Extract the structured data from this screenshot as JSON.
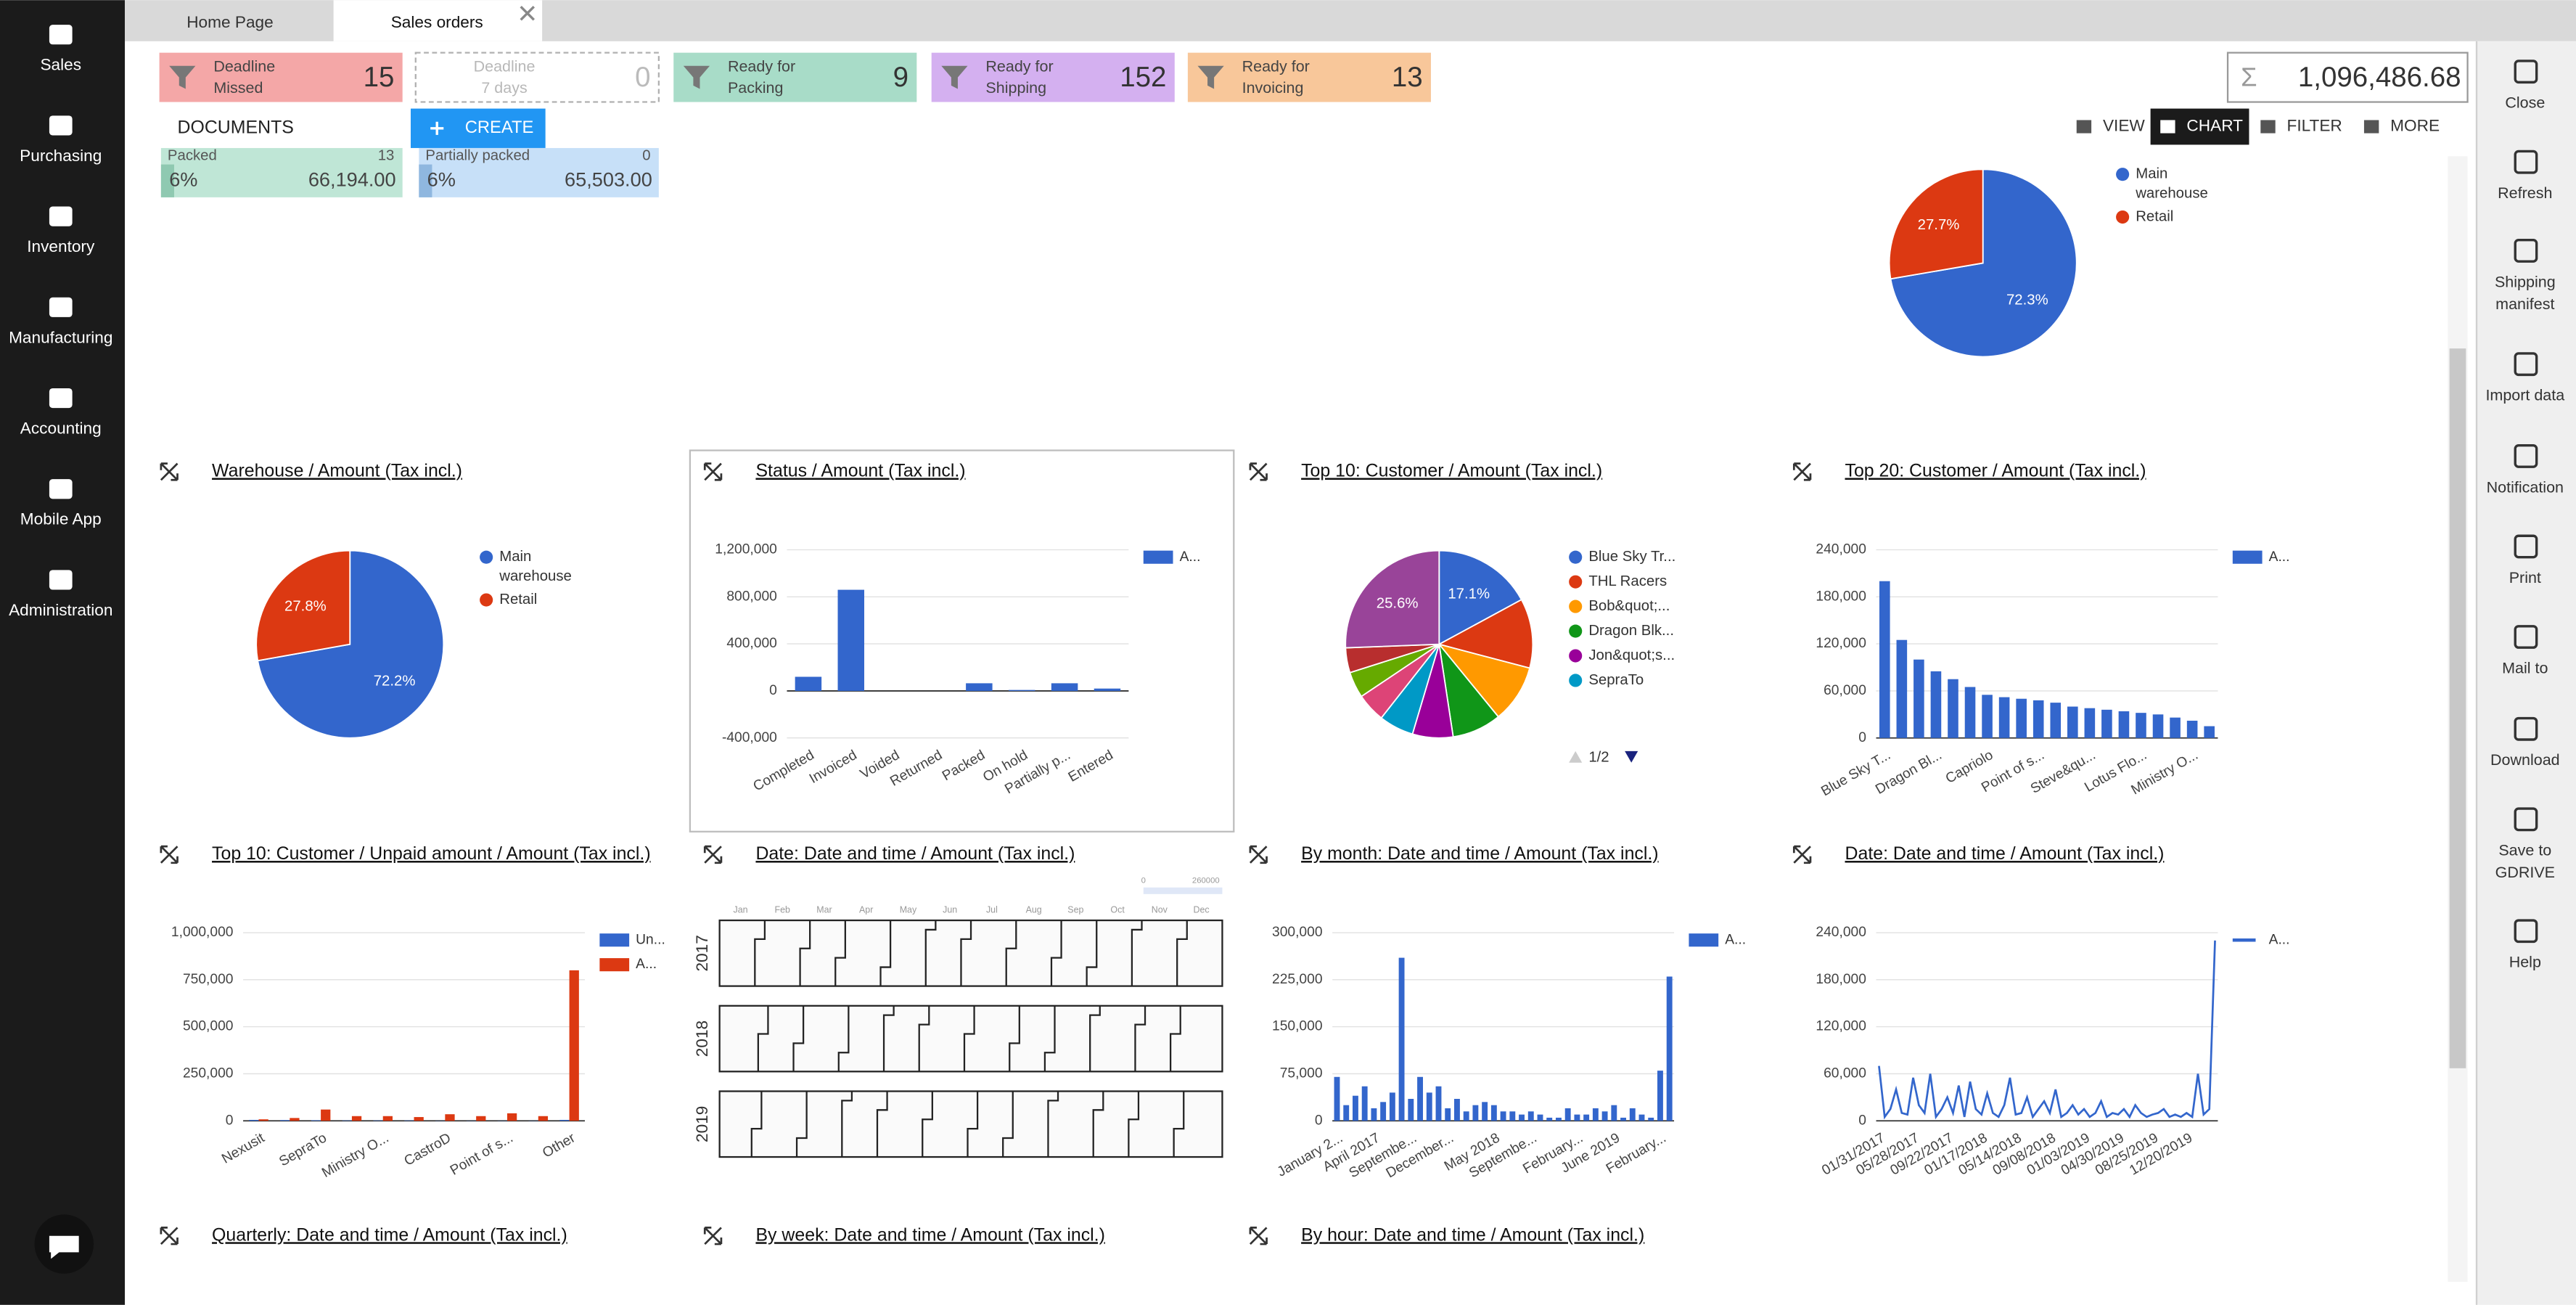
{
  "sidebar": [
    "Sales",
    "Purchasing",
    "Inventory",
    "Manufacturing",
    "Accounting",
    "Mobile App",
    "Administration"
  ],
  "tabs": [
    "Home Page",
    "Sales orders"
  ],
  "filters": [
    {
      "lines": [
        "Deadline",
        "Missed"
      ],
      "count": 15,
      "color": "#f4a7a7"
    },
    {
      "lines": [
        "Deadline",
        "7 days"
      ],
      "count": 0,
      "color": "#ffffff"
    },
    {
      "lines": [
        "Ready for",
        "Packing"
      ],
      "count": 9,
      "color": "#a8dcc8"
    },
    {
      "lines": [
        "Ready for",
        "Shipping"
      ],
      "count": 152,
      "color": "#d4b0f0"
    },
    {
      "lines": [
        "Ready for",
        "Invoicing"
      ],
      "count": 13,
      "color": "#f8c79a"
    }
  ],
  "total": {
    "symbol": "Σ",
    "value": "1,096,486.68"
  },
  "documents": "DOCUMENTS",
  "create": "CREATE",
  "toolbar": [
    "VIEW",
    "CHART",
    "FILTER",
    "MORE"
  ],
  "status_cards": [
    {
      "label": "Packed",
      "count": 13,
      "percent": "6%",
      "amount": "66,194.00",
      "color": "#bfe6d6"
    },
    {
      "label": "Partially packed",
      "count": 0,
      "percent": "6%",
      "amount": "65,503.00",
      "color": "#c7e0f8"
    }
  ],
  "actions": [
    [
      "Close"
    ],
    [
      "Refresh"
    ],
    [
      "Shipping",
      "manifest"
    ],
    [
      "Import data"
    ],
    [
      "Notification"
    ],
    [
      "Print"
    ],
    [
      "Mail to"
    ],
    [
      "Download"
    ],
    [
      "Save to",
      "GDRIVE"
    ],
    [
      "Help"
    ]
  ],
  "top_chart": {
    "type": "pie",
    "categories": [
      [
        "Main",
        "warehouse"
      ],
      [
        "Retail"
      ]
    ],
    "values": [
      72.3,
      27.7
    ],
    "value_labels": [
      "72.3%",
      "27.7%"
    ],
    "colors": [
      "#3366cc",
      "#dc3912"
    ]
  },
  "widgets": [
    {
      "title": "Warehouse / Amount (Tax incl.)",
      "chart": {
        "type": "pie",
        "categories": [
          [
            "Main",
            "warehouse"
          ],
          [
            "Retail"
          ]
        ],
        "values": [
          72.2,
          27.8
        ],
        "value_labels": [
          "72.2%",
          "27.8%"
        ],
        "colors": [
          "#3366cc",
          "#dc3912"
        ]
      }
    },
    {
      "title": "Status / Amount (Tax incl.)",
      "chart": {
        "type": "bar",
        "categories": [
          "Completed",
          "Invoiced",
          "Voided",
          "Returned",
          "Packed",
          "On hold",
          "Partially p...",
          "Entered"
        ],
        "series": [
          {
            "name": "A...",
            "color": "#3366cc",
            "values": [
              120000,
              860000,
              0,
              0,
              65000,
              8000,
              65000,
              20000
            ]
          }
        ],
        "ylim": [
          -400000,
          1200000
        ],
        "yticks": [
          {
            "value": -400000,
            "label": "-400,000"
          },
          0,
          {
            "value": 400000,
            "label": "400,000"
          },
          {
            "value": 800000,
            "label": "800,000"
          },
          {
            "value": 1200000,
            "label": "1,200,000"
          }
        ],
        "grid": true
      }
    },
    {
      "title": "Top 10: Customer / Amount (Tax incl.)",
      "chart": {
        "type": "pie",
        "categories": [
          [
            "Blue Sky Tr..."
          ],
          [
            "THL Racers"
          ],
          [
            "Bob&quot;..."
          ],
          [
            "Dragon Blk..."
          ],
          [
            "Jon&quot;s..."
          ],
          [
            "SepraTo"
          ],
          null,
          null,
          null,
          null
        ],
        "values": [
          17.1,
          12,
          10,
          8.5,
          7,
          6,
          5,
          4.5,
          4.3,
          25.6
        ],
        "value_labels": [
          "17.1%",
          null,
          null,
          null,
          null,
          null,
          null,
          null,
          null,
          "25.6%"
        ],
        "colors": [
          "#3366cc",
          "#dc3912",
          "#ff9900",
          "#109618",
          "#990099",
          "#0099c6",
          "#dd4477",
          "#66aa00",
          "#b82e2e",
          "#994499"
        ],
        "legend_page": "1/2"
      }
    },
    {
      "title": "Top 20: Customer / Amount (Tax incl.)",
      "chart": {
        "type": "bar",
        "categories": [
          "Blue Sky T...",
          null,
          null,
          "Dragon Bl...",
          null,
          null,
          "Capriolo",
          null,
          null,
          "Point of s...",
          null,
          null,
          "Steve&qu...",
          null,
          null,
          "Lotus Flo...",
          null,
          null,
          "Ministry O...",
          null
        ],
        "series": [
          {
            "name": "A...",
            "color": "#3366cc",
            "values": [
              200000,
              125000,
              100000,
              85000,
              75000,
              65000,
              55000,
              52000,
              50000,
              48000,
              45000,
              40000,
              38000,
              36000,
              34000,
              32000,
              30000,
              26000,
              22000,
              15000
            ]
          }
        ],
        "ylim": [
          0,
          240000
        ],
        "yticks": [
          0,
          {
            "value": 60000,
            "label": "60,000"
          },
          {
            "value": 120000,
            "label": "120,000"
          },
          {
            "value": 180000,
            "label": "180,000"
          },
          {
            "value": 240000,
            "label": "240,000"
          }
        ],
        "grid": true
      }
    },
    {
      "title": "Top 10: Customer / Unpaid amount / Amount (Tax incl.)",
      "chart": {
        "type": "bar",
        "categories": [
          "Nexusit",
          null,
          "SepraTo",
          null,
          "Ministry O...",
          null,
          "CastroD",
          null,
          "Point of s...",
          null,
          "Other"
        ],
        "series": [
          {
            "name": "Un...",
            "color": "#3366cc",
            "values": [
              5000,
              4000,
              3000,
              2000,
              2000,
              2000,
              1000,
              1000,
              1000,
              1000,
              5000
            ]
          },
          {
            "name": "A...",
            "color": "#dc3912",
            "values": [
              8000,
              15000,
              60000,
              25000,
              25000,
              20000,
              35000,
              25000,
              40000,
              25000,
              800000
            ]
          }
        ],
        "ylim": [
          0,
          1000000
        ],
        "yticks": [
          0,
          {
            "value": 250000,
            "label": "250,000"
          },
          {
            "value": 500000,
            "label": "500,000"
          },
          {
            "value": 750000,
            "label": "750,000"
          },
          {
            "value": 1000000,
            "label": "1,000,000"
          }
        ],
        "grid": true
      }
    },
    {
      "title": "Date: Date and time / Amount (Tax incl.)",
      "chart": {
        "type": "calendar",
        "months": [
          "Jan",
          "Feb",
          "Mar",
          "Apr",
          "May",
          "Jun",
          "Jul",
          "Aug",
          "Sep",
          "Oct",
          "Nov",
          "Dec"
        ],
        "years": [
          "2017",
          "2018",
          "2019"
        ],
        "scale": [
          "0",
          "260000"
        ]
      }
    },
    {
      "title": "By month: Date and time / Amount (Tax incl.)",
      "chart": {
        "type": "bar",
        "categories": [
          "January 2...",
          null,
          null,
          null,
          "April 2017",
          null,
          null,
          null,
          "Septembe...",
          null,
          null,
          null,
          "December...",
          null,
          null,
          null,
          null,
          "May 2018",
          null,
          null,
          null,
          "Septembe...",
          null,
          null,
          null,
          null,
          "February...",
          null,
          null,
          null,
          "June 2019",
          null,
          null,
          null,
          null,
          "February...",
          null
        ],
        "series": [
          {
            "name": "A...",
            "color": "#3366cc",
            "values": [
              70000,
              25000,
              40000,
              55000,
              20000,
              30000,
              45000,
              260000,
              35000,
              70000,
              45000,
              55000,
              20000,
              35000,
              15000,
              25000,
              30000,
              25000,
              15000,
              15000,
              10000,
              15000,
              10000,
              5000,
              5000,
              20000,
              10000,
              10000,
              20000,
              15000,
              25000,
              5000,
              20000,
              10000,
              5000,
              80000,
              230000
            ]
          }
        ],
        "ylim": [
          0,
          300000
        ],
        "yticks": [
          0,
          {
            "value": 75000,
            "label": "75,000"
          },
          {
            "value": 150000,
            "label": "150,000"
          },
          {
            "value": 225000,
            "label": "225,000"
          },
          {
            "value": 300000,
            "label": "300,000"
          }
        ],
        "grid": true
      }
    },
    {
      "title": "Date: Date and time / Amount (Tax incl.)",
      "chart": {
        "type": "line",
        "categories": [
          "01/31/2017",
          null,
          null,
          null,
          null,
          null,
          "05/28/2017",
          null,
          null,
          null,
          null,
          null,
          "09/22/2017",
          null,
          null,
          null,
          null,
          null,
          "01/17/2018",
          null,
          null,
          null,
          null,
          null,
          "05/14/2018",
          null,
          null,
          null,
          null,
          null,
          "09/08/2018",
          null,
          null,
          null,
          null,
          null,
          "01/03/2019",
          null,
          null,
          null,
          null,
          null,
          "04/30/2019",
          null,
          null,
          null,
          null,
          null,
          "08/25/2019",
          null,
          null,
          null,
          null,
          null,
          "12/20/2019",
          null,
          null,
          null,
          null,
          null
        ],
        "series": [
          {
            "name": "A...",
            "color": "#3366cc",
            "values": [
              70000,
              5000,
              15000,
              40000,
              10000,
              8000,
              55000,
              20000,
              10000,
              60000,
              5000,
              15000,
              30000,
              10000,
              45000,
              5000,
              50000,
              15000,
              8000,
              35000,
              10000,
              5000,
              20000,
              55000,
              8000,
              10000,
              30000,
              5000,
              15000,
              25000,
              10000,
              40000,
              5000,
              10000,
              20000,
              8000,
              15000,
              5000,
              10000,
              25000,
              5000,
              10000,
              8000,
              15000,
              5000,
              20000,
              10000,
              5000,
              8000,
              10000,
              15000,
              5000,
              8000,
              5000,
              10000,
              5000,
              60000,
              8000,
              15000,
              230000
            ]
          }
        ],
        "ylim": [
          0,
          240000
        ],
        "yticks": [
          0,
          {
            "value": 60000,
            "label": "60,000"
          },
          {
            "value": 120000,
            "label": "120,000"
          },
          {
            "value": 180000,
            "label": "180,000"
          },
          {
            "value": 240000,
            "label": "240,000"
          }
        ],
        "grid": true
      }
    },
    {
      "title": "Quarterly: Date and time / Amount (Tax incl.)",
      "chart": null
    },
    {
      "title": "By week: Date and time / Amount (Tax incl.)",
      "chart": null
    },
    {
      "title": "By hour: Date and time / Amount (Tax incl.)",
      "chart": null
    }
  ]
}
